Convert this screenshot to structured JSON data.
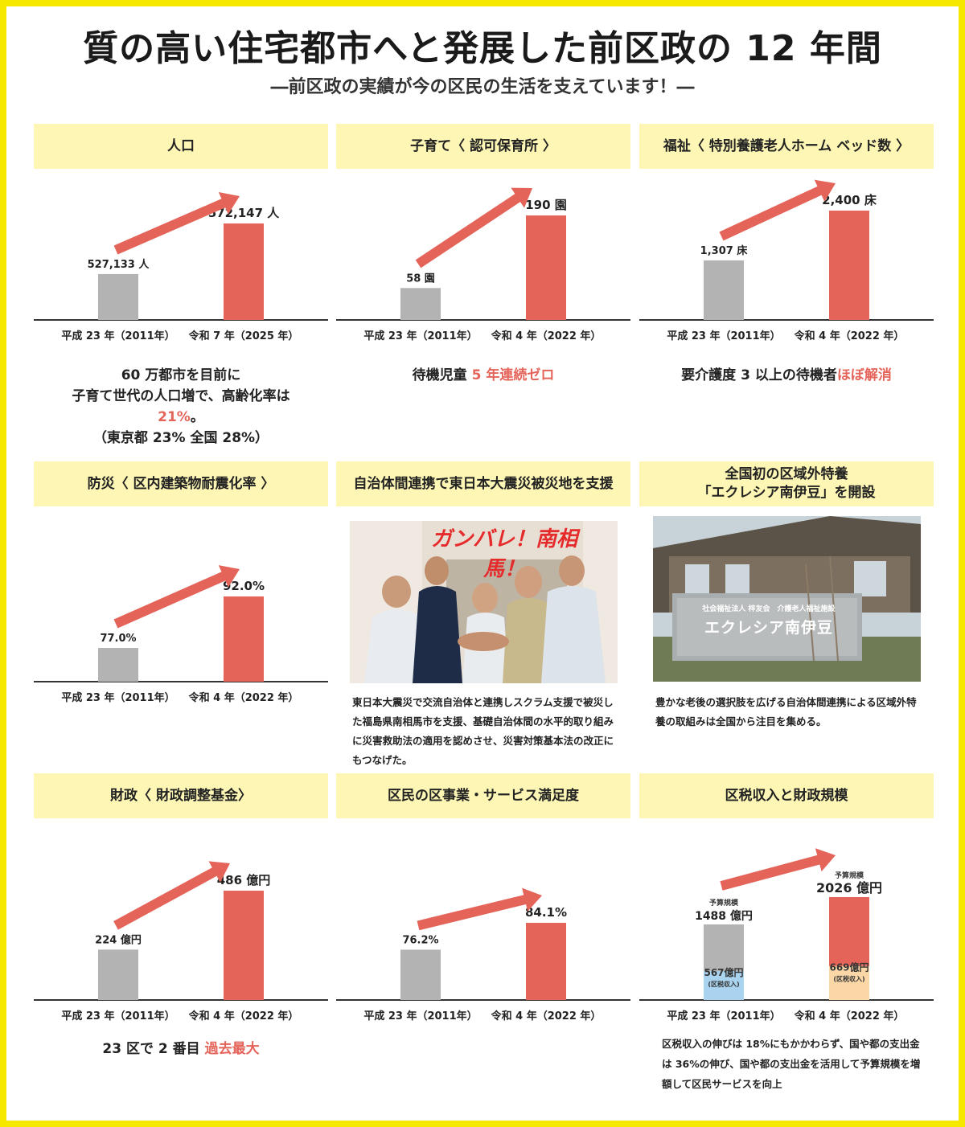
{
  "title": "質の高い住宅都市へと発展した前区政の 12 年間",
  "subtitle": "―前区政の実績が今の区民の生活を支えています！―",
  "colors": {
    "before": "#b3b3b3",
    "after": "#e5645a",
    "arrow": "#e5645a",
    "header_bg": "#fdf6b4",
    "frame": "#f7e800",
    "tax_before": "#a9d3ee",
    "tax_after": "#fbd7a7"
  },
  "panels": {
    "population": {
      "title": "人口",
      "note_line1": "60 万都市を目前に",
      "note_line2": "子育て世代の人口増で、高齢化率は",
      "note_highlight": "21%",
      "note_line3_suffix": "。",
      "note_line4": "（東京都 23% 全国 28%）"
    },
    "childcare": {
      "title": "子育て〈 認可保育所 〉",
      "note_prefix": "待機児童 ",
      "note_highlight": "5 年連続ゼロ"
    },
    "welfare": {
      "title": "福祉〈 特別養護老人ホーム ベッド数 〉",
      "note_prefix": "要介護度 3 以上の待機者",
      "note_highlight": "ほぼ解消"
    },
    "disaster": {
      "title": "防災〈 区内建築物耐震化率 〉"
    },
    "support": {
      "title": "自治体間連携で東日本大震災被災地を支援",
      "photo_banner": "ガンバレ！南相馬！",
      "caption": "東日本大震災で交流自治体と連携しスクラム支援で被災した福島県南相馬市を支援、基礎自治体間の水平的取り組みに災害救助法の適用を認めさせ、災害対策基本法の改正にもつなげた。"
    },
    "facility": {
      "title_line1": "全国初の区域外特養",
      "title_line2": "「エクレシア南伊豆」を開設",
      "sign_line1": "社会福祉法人 梓友会　介護老人福祉施設",
      "sign_line2": "エクレシア南伊豆",
      "caption": "豊かな老後の選択肢を広げる自治体間連携による区域外特養の取組みは全国から注目を集める。"
    },
    "finance": {
      "title": "財政〈 財政調整基金〉",
      "note_prefix": "23 区で 2 番目 ",
      "note_highlight": "過去最大"
    },
    "satisfaction": {
      "title": "区民の区事業・サービス満足度"
    },
    "tax": {
      "title": "区税収入と財政規模",
      "caption": "区税収入の伸びは 18%にもかかわらず、国や都の支出金は 36%の伸び、国や都の支出金を活用して予算規模を増額して区民サービスを向上"
    }
  },
  "chart_data": [
    {
      "id": "population",
      "type": "bar",
      "categories": [
        "平成 23 年（2011年）",
        "令和 7 年（2025 年）"
      ],
      "values": [
        527133,
        572147
      ],
      "labels": [
        "527,133 人",
        "572,147 人"
      ],
      "ylim": [
        0,
        572147
      ]
    },
    {
      "id": "childcare",
      "type": "bar",
      "categories": [
        "平成 23 年（2011年）",
        "令和 4 年（2022 年）"
      ],
      "values": [
        58,
        190
      ],
      "labels": [
        "58 園",
        "190 園"
      ],
      "ylim": [
        0,
        190
      ]
    },
    {
      "id": "welfare",
      "type": "bar",
      "categories": [
        "平成 23 年（2011年）",
        "令和 4 年（2022 年）"
      ],
      "values": [
        1307,
        2400
      ],
      "labels": [
        "1,307 床",
        "2,400 床"
      ],
      "ylim": [
        0,
        2400
      ]
    },
    {
      "id": "disaster",
      "type": "bar",
      "categories": [
        "平成 23 年（2011年）",
        "令和 4 年（2022 年）"
      ],
      "values": [
        77.0,
        92.0
      ],
      "labels": [
        "77.0%",
        "92.0%"
      ],
      "ylim": [
        0,
        92.0
      ]
    },
    {
      "id": "finance",
      "type": "bar",
      "categories": [
        "平成 23 年（2011年）",
        "令和 4 年（2022 年）"
      ],
      "values": [
        224,
        486
      ],
      "labels": [
        "224 億円",
        "486 億円"
      ],
      "ylim": [
        0,
        486
      ]
    },
    {
      "id": "satisfaction",
      "type": "bar",
      "categories": [
        "平成 23 年（2011年）",
        "令和 4 年（2022 年）"
      ],
      "values": [
        76.2,
        84.1
      ],
      "labels": [
        "76.2%",
        "84.1%"
      ],
      "ylim": [
        0,
        84.1
      ]
    },
    {
      "id": "tax",
      "type": "bar",
      "categories": [
        "平成 23 年（2011年）",
        "令和 4 年（2022 年）"
      ],
      "values": [
        1488,
        2026
      ],
      "labels": [
        "1488 億円",
        "2026 億円"
      ],
      "top_labels": [
        "予算規模",
        "予算規模"
      ],
      "sub_values": [
        567,
        669
      ],
      "sub_labels": [
        "567億円",
        "669億円"
      ],
      "sub_notes": [
        "(区税収入)",
        "(区税収入)"
      ],
      "ylim": [
        0,
        2026
      ]
    }
  ]
}
